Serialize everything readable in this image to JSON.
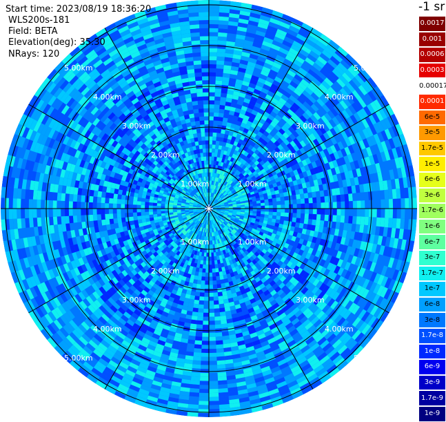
{
  "header": {
    "start_time": "Start time: 2023/08/19 18:36:20",
    "instrument": "WLS200s-181",
    "field": "Field: BETA",
    "elevation": "Elevation(deg): 35.30",
    "nrays": "NRays: 120"
  },
  "range_rings": [
    "1.00km",
    "2.00km",
    "3.00km",
    "4.00km",
    "5.00km"
  ],
  "colorbar": {
    "unit_label": "-1 sr",
    "entries": [
      {
        "label": "0.0017",
        "color": "#7f0000",
        "text": "#ffffff"
      },
      {
        "label": "0.001",
        "color": "#990000",
        "text": "#ffffff"
      },
      {
        "label": "0.0006",
        "color": "#b30000",
        "text": "#ffffff"
      },
      {
        "label": "0.0003",
        "color": "#e60000",
        "text": "#ffffff"
      },
      {
        "label": "0.00017",
        "color": "#ffffff",
        "text": "#000000"
      },
      {
        "label": "0.0001",
        "color": "#ff2a00",
        "text": "#ffffff"
      },
      {
        "label": "6e-5",
        "color": "#ff6a00",
        "text": "#000000"
      },
      {
        "label": "3e-5",
        "color": "#ff9a00",
        "text": "#000000"
      },
      {
        "label": "1.7e-5",
        "color": "#ffc800",
        "text": "#000000"
      },
      {
        "label": "1e-5",
        "color": "#ffee00",
        "text": "#000000"
      },
      {
        "label": "6e-6",
        "color": "#e6ff1a",
        "text": "#000000"
      },
      {
        "label": "3e-6",
        "color": "#c0ff40",
        "text": "#000000"
      },
      {
        "label": "1.7e-6",
        "color": "#a0ff5e",
        "text": "#000000"
      },
      {
        "label": "1e-6",
        "color": "#80ff80",
        "text": "#000000"
      },
      {
        "label": "6e-7",
        "color": "#5effa0",
        "text": "#000000"
      },
      {
        "label": "3e-7",
        "color": "#30ffd0",
        "text": "#000000"
      },
      {
        "label": "1.7e-7",
        "color": "#10f0f0",
        "text": "#000000"
      },
      {
        "label": "1e-7",
        "color": "#00c8ff",
        "text": "#000000"
      },
      {
        "label": "6e-8",
        "color": "#00a0ff",
        "text": "#000000"
      },
      {
        "label": "3e-8",
        "color": "#0078ff",
        "text": "#000000"
      },
      {
        "label": "1.7e-8",
        "color": "#0050ff",
        "text": "#ffffff"
      },
      {
        "label": "1e-8",
        "color": "#0028ff",
        "text": "#ffffff"
      },
      {
        "label": "6e-9",
        "color": "#0000f0",
        "text": "#ffffff"
      },
      {
        "label": "3e-9",
        "color": "#0000c8",
        "text": "#ffffff"
      },
      {
        "label": "1.7e-9",
        "color": "#0000a0",
        "text": "#ffffff"
      },
      {
        "label": "1e-9",
        "color": "#000080",
        "text": "#ffffff"
      }
    ]
  },
  "field_colors": {
    "near": [
      "#30ffd0",
      "#10f0f0",
      "#00c8ff",
      "#00a0ff",
      "#0078ff"
    ],
    "mid": [
      "#10f0f0",
      "#00c8ff",
      "#00a0ff",
      "#0078ff",
      "#0050ff",
      "#0028ff"
    ],
    "far": [
      "#10f0f0",
      "#00c8ff",
      "#00a0ff",
      "#0078ff",
      "#0050ff"
    ]
  }
}
